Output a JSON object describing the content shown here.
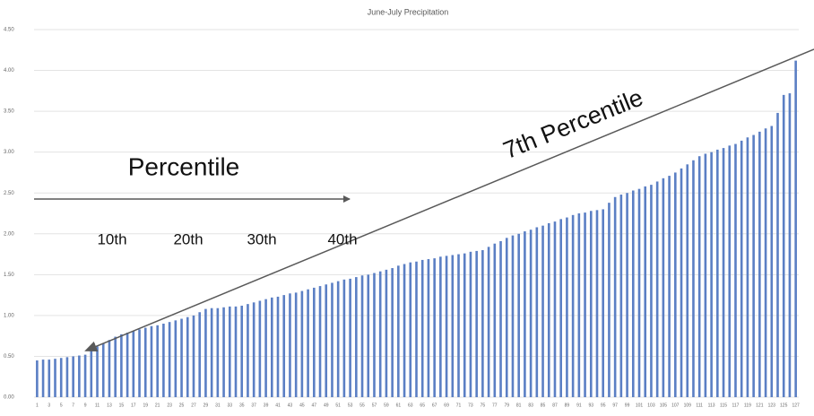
{
  "chart_data": {
    "type": "bar",
    "title": "June-July Precipitation",
    "categories": [
      "1",
      null,
      "3",
      null,
      "5",
      null,
      "7",
      null,
      "9",
      null,
      "11",
      null,
      "13",
      null,
      "15",
      null,
      "17",
      null,
      "19",
      null,
      "21",
      null,
      "23",
      null,
      "25",
      null,
      "27",
      null,
      "29",
      null,
      "31",
      null,
      "33",
      null,
      "35",
      null,
      "37",
      null,
      "39",
      null,
      "41",
      null,
      "43",
      null,
      "45",
      null,
      "47",
      null,
      "49",
      null,
      "51",
      null,
      "53",
      null,
      "55",
      null,
      "57",
      null,
      "59",
      null,
      "61",
      null,
      "63",
      null,
      "65",
      null,
      "67",
      null,
      "69",
      null,
      "71",
      null,
      "73",
      null,
      "75",
      null,
      "77",
      null,
      "79",
      null,
      "81",
      null,
      "83",
      null,
      "85",
      null,
      "87",
      null,
      "89",
      null,
      "91",
      null,
      "93",
      null,
      "95",
      null,
      "97",
      null,
      "99",
      null,
      "101",
      null,
      "103",
      null,
      "105",
      null,
      "107",
      null,
      "109",
      null,
      "111",
      null,
      "113",
      null,
      "115",
      null,
      "117",
      null,
      "119",
      null,
      "121",
      null,
      "123",
      null,
      "125",
      null,
      "127"
    ],
    "values": [
      0.45,
      0.46,
      0.46,
      0.47,
      0.48,
      0.49,
      0.5,
      0.51,
      0.52,
      0.57,
      0.62,
      0.66,
      0.7,
      0.74,
      0.77,
      0.79,
      0.81,
      0.83,
      0.85,
      0.87,
      0.88,
      0.9,
      0.92,
      0.94,
      0.96,
      0.98,
      1.0,
      1.04,
      1.08,
      1.09,
      1.09,
      1.1,
      1.11,
      1.11,
      1.12,
      1.14,
      1.16,
      1.18,
      1.2,
      1.22,
      1.23,
      1.25,
      1.27,
      1.28,
      1.3,
      1.32,
      1.34,
      1.36,
      1.38,
      1.4,
      1.42,
      1.44,
      1.45,
      1.47,
      1.49,
      1.5,
      1.52,
      1.54,
      1.56,
      1.58,
      1.61,
      1.63,
      1.65,
      1.66,
      1.68,
      1.69,
      1.7,
      1.72,
      1.73,
      1.74,
      1.75,
      1.76,
      1.78,
      1.79,
      1.8,
      1.84,
      1.88,
      1.91,
      1.95,
      1.98,
      2.0,
      2.03,
      2.05,
      2.08,
      2.1,
      2.13,
      2.15,
      2.18,
      2.2,
      2.23,
      2.25,
      2.26,
      2.28,
      2.29,
      2.3,
      2.38,
      2.45,
      2.48,
      2.5,
      2.53,
      2.55,
      2.58,
      2.6,
      2.64,
      2.68,
      2.71,
      2.75,
      2.8,
      2.85,
      2.9,
      2.95,
      2.98,
      3.0,
      3.03,
      3.05,
      3.08,
      3.1,
      3.14,
      3.18,
      3.21,
      3.25,
      3.29,
      3.32,
      3.48,
      3.7,
      3.72,
      4.12
    ],
    "color": "#5b7fc4",
    "ylim": [
      0,
      4.5
    ],
    "yticks": [
      {
        "value": 0,
        "label": "0.00"
      },
      {
        "value": 0.5,
        "label": "0.50"
      },
      {
        "value": 1,
        "label": "1.00"
      },
      {
        "value": 1.5,
        "label": "1.50"
      },
      {
        "value": 2,
        "label": "2.00"
      },
      {
        "value": 2.5,
        "label": "2.50"
      },
      {
        "value": 3,
        "label": "3.00"
      },
      {
        "value": 3.5,
        "label": "3.50"
      },
      {
        "value": 4,
        "label": "4.00"
      },
      {
        "value": 4.5,
        "label": "4.50"
      }
    ],
    "grid": true,
    "annotations": [
      "Percentile",
      "10th",
      "20th",
      "30th",
      "40th",
      "7th Percentile"
    ]
  }
}
